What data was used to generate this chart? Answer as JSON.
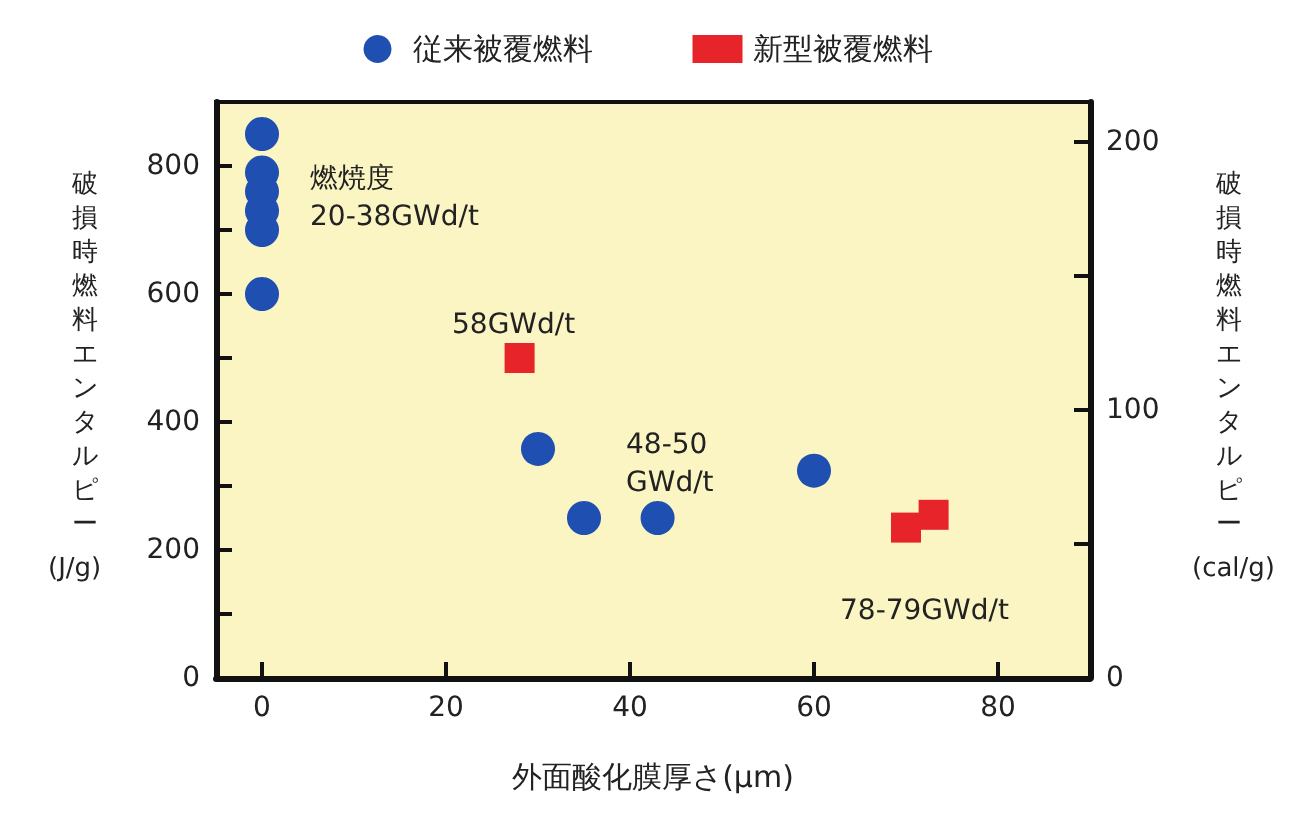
{
  "chart_data": {
    "type": "scatter",
    "xlabel": "外面酸化膜厚さ(μm)",
    "ylabel": "破損時燃料エンタルピー(J/g)",
    "y2label": "破損時燃料エンタルピー(cal/g)",
    "series": [
      {
        "name": "従来被覆燃料",
        "color": "#1f4fb0",
        "marker": "circle",
        "x": [
          0,
          0,
          0,
          0,
          0,
          0,
          30,
          35,
          43,
          60
        ],
        "values": [
          850,
          790,
          760,
          730,
          700,
          600,
          358,
          250,
          250,
          324
        ]
      },
      {
        "name": "新型被覆燃料",
        "color": "#e8242b",
        "marker": "square",
        "x": [
          28,
          70,
          73
        ],
        "values": [
          500,
          235,
          255
        ]
      }
    ],
    "xlim": [
      -5,
      90
    ],
    "xticks": [
      0,
      20,
      40,
      60,
      80
    ],
    "ylim": [
      0,
      900
    ],
    "yticks": [
      0,
      200,
      400,
      600,
      800
    ],
    "y2lim": [
      0,
      215
    ],
    "y2ticks": [
      0,
      100,
      200
    ],
    "grid": false,
    "legend": "top",
    "annotations": [
      "燃焼度\n20-38GWd/t",
      "58GWd/t",
      "48-50\nGWd/t",
      "78-79GWd/t"
    ]
  }
}
